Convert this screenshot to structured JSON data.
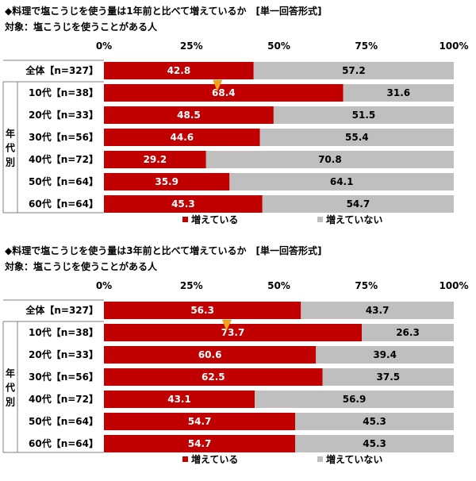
{
  "colors": {
    "increased": "#c00000",
    "not_increased": "#bfbfbf",
    "frame": "#808080",
    "marker": "#f5a21b"
  },
  "group_label": "年代別",
  "chart_data": [
    {
      "type": "bar",
      "orientation": "horizontal",
      "stacked": true,
      "percent_stacked": true,
      "title": "◆料理で塩こうじを使う量は1年前と比べて増えているか　[単一回答形式]",
      "subtitle": "対象：塩こうじを使うことがある人",
      "xlim": [
        0,
        100
      ],
      "ticks": [
        "0%",
        "25%",
        "50%",
        "75%",
        "100%"
      ],
      "categories": [
        "全体【n=327】",
        "10代【n=38】",
        "20代【n=33】",
        "30代【n=56】",
        "40代【n=72】",
        "50代【n=64】",
        "60代【n=64】"
      ],
      "series": [
        {
          "name": "増えている",
          "values": [
            42.8,
            68.4,
            48.5,
            44.6,
            29.2,
            35.9,
            45.3
          ]
        },
        {
          "name": "増えていない",
          "values": [
            57.2,
            31.6,
            51.5,
            55.4,
            70.8,
            64.1,
            54.7
          ]
        }
      ],
      "highlight_category": 1,
      "legend_position": "bottom"
    },
    {
      "type": "bar",
      "orientation": "horizontal",
      "stacked": true,
      "percent_stacked": true,
      "title": "◆料理で塩こうじを使う量は3年前と比べて増えているか　[単一回答形式]",
      "subtitle": "対象：塩こうじを使うことがある人",
      "xlim": [
        0,
        100
      ],
      "ticks": [
        "0%",
        "25%",
        "50%",
        "75%",
        "100%"
      ],
      "categories": [
        "全体【n=327】",
        "10代【n=38】",
        "20代【n=33】",
        "30代【n=56】",
        "40代【n=72】",
        "50代【n=64】",
        "60代【n=64】"
      ],
      "series": [
        {
          "name": "増えている",
          "values": [
            56.3,
            73.7,
            60.6,
            62.5,
            43.1,
            54.7,
            54.7
          ]
        },
        {
          "name": "増えていない",
          "values": [
            43.7,
            26.3,
            39.4,
            37.5,
            56.9,
            45.3,
            45.3
          ]
        }
      ],
      "highlight_category": 1,
      "legend_position": "bottom"
    }
  ]
}
